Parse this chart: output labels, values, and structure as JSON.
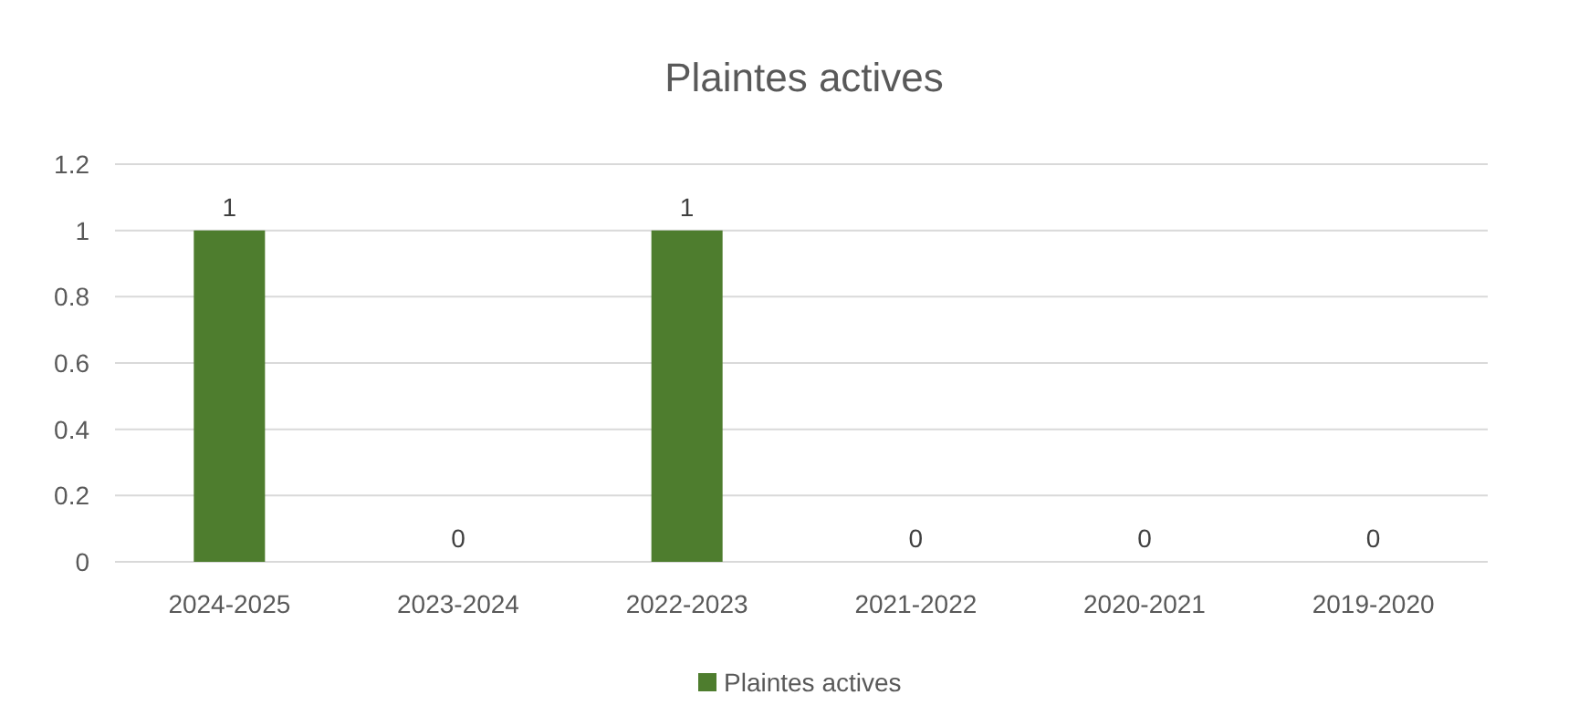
{
  "chart_data": {
    "type": "bar",
    "title": "Plaintes actives",
    "categories": [
      "2024-2025",
      "2023-2024",
      "2022-2023",
      "2021-2022",
      "2020-2021",
      "2019-2020"
    ],
    "series": [
      {
        "name": "Plaintes actives",
        "color": "#4e7d2e",
        "values": [
          1,
          0,
          1,
          0,
          0,
          0
        ]
      }
    ],
    "ylim": [
      0,
      1.2
    ],
    "yticks": [
      0,
      0.2,
      0.4,
      0.6,
      0.8,
      1,
      1.2
    ],
    "grid": "y",
    "legend": "bottom",
    "data_labels": true
  }
}
